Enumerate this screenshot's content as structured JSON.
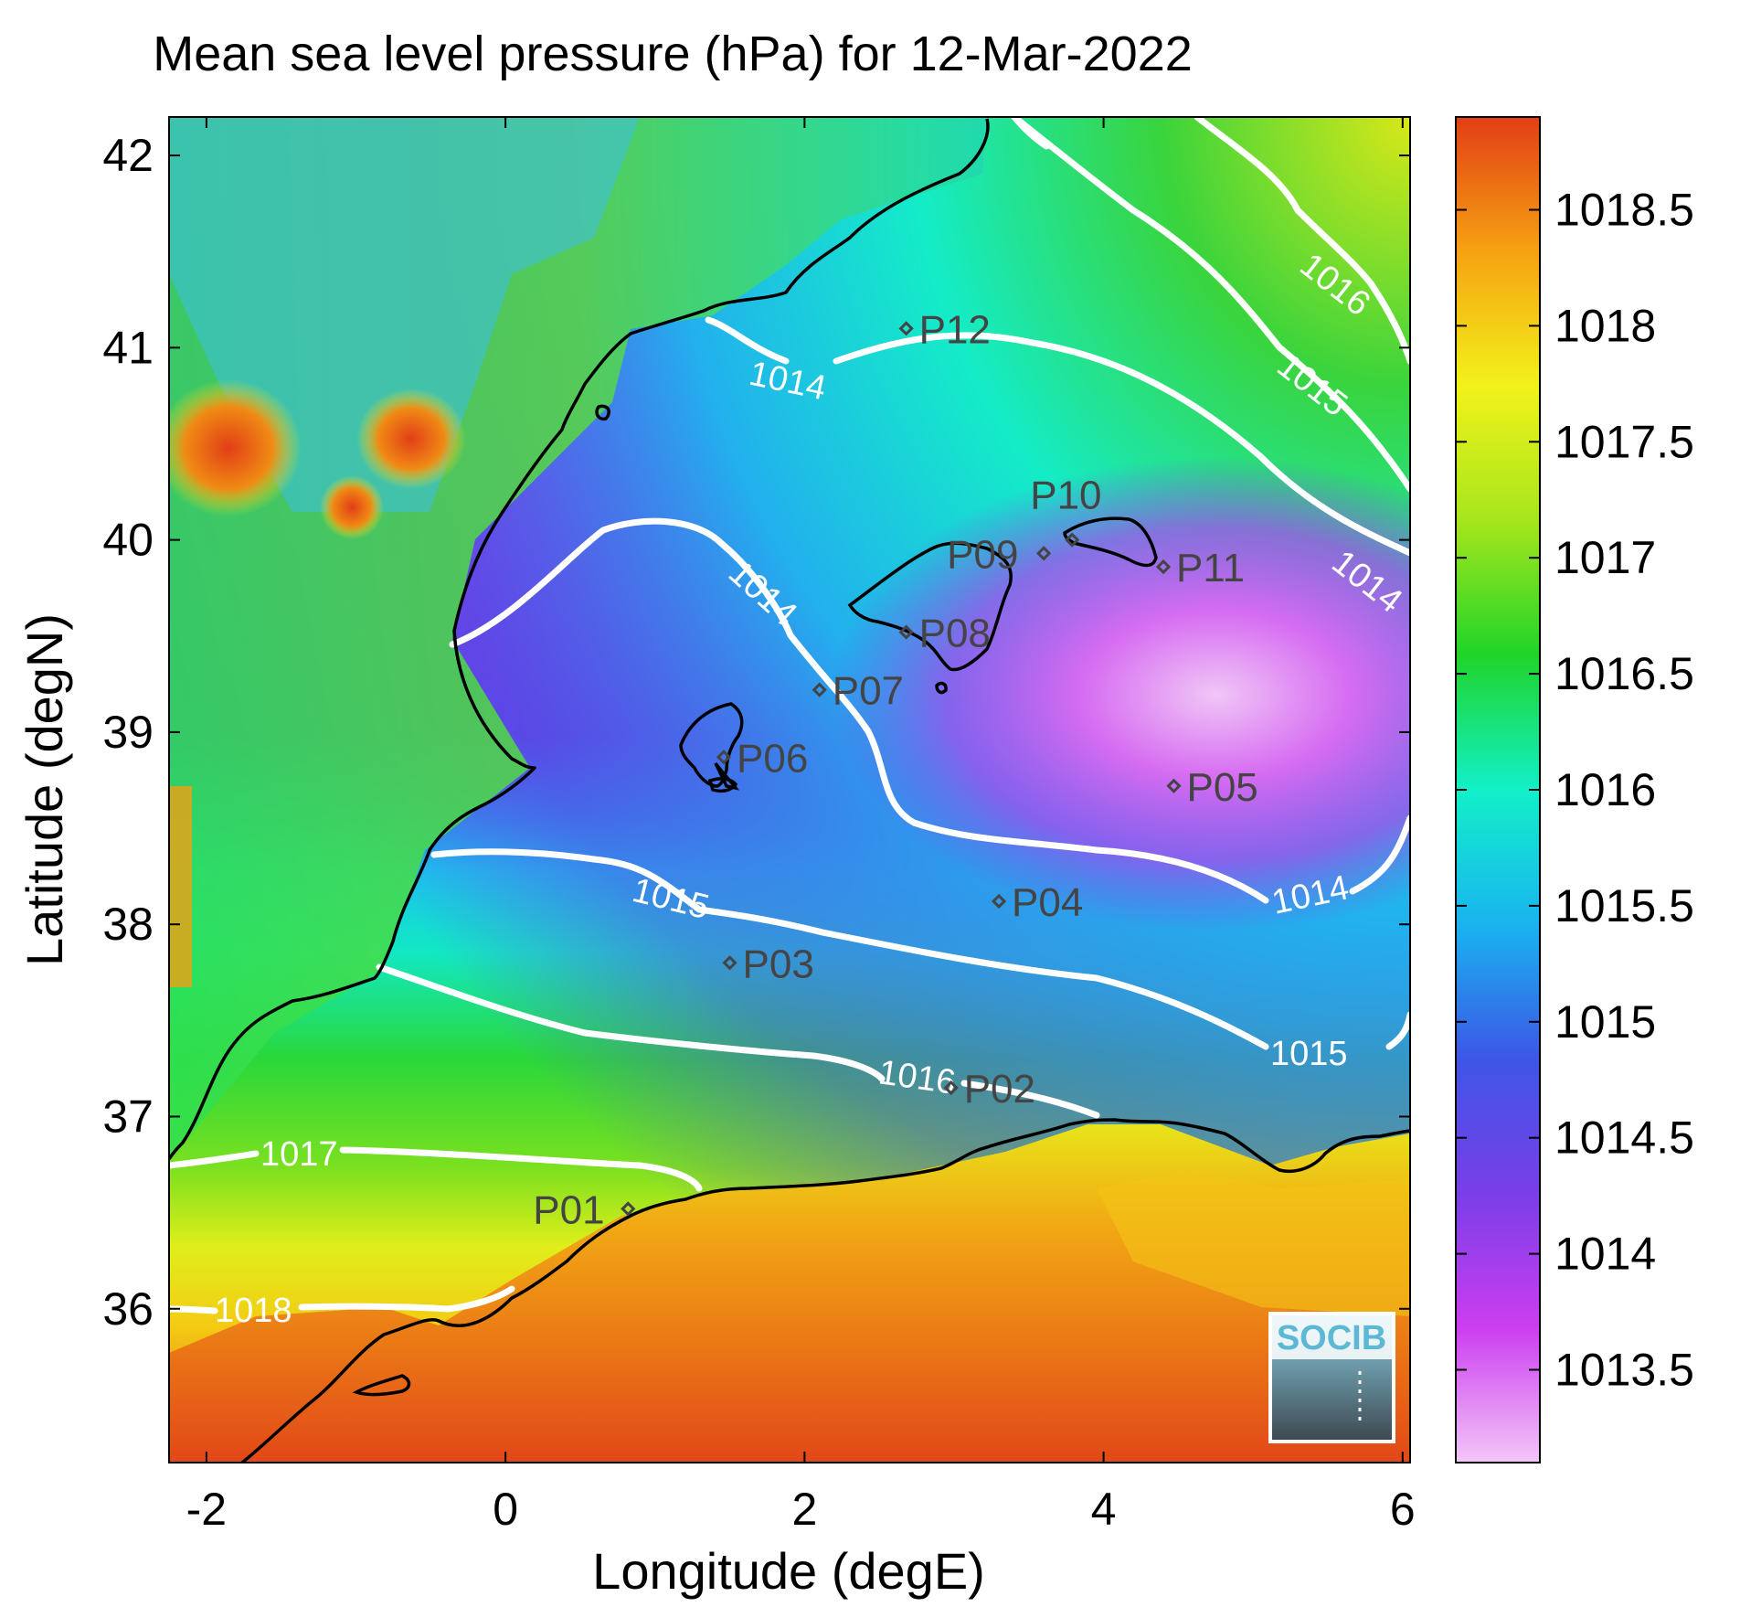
{
  "title": "Mean sea level pressure (hPa) for 12-Mar-2022",
  "xaxis": {
    "label": "Longitude (degE)",
    "range": [
      -2.25,
      6.05
    ],
    "ticks": [
      "-2",
      "0",
      "2",
      "4",
      "6"
    ],
    "tick_values": [
      -2,
      0,
      2,
      4,
      6
    ]
  },
  "yaxis": {
    "label": "Latitude (degN)",
    "range": [
      35.2,
      42.2
    ],
    "ticks": [
      "36",
      "37",
      "38",
      "39",
      "40",
      "41",
      "42"
    ],
    "tick_values": [
      36,
      37,
      38,
      39,
      40,
      41,
      42
    ]
  },
  "colorbar": {
    "range": [
      1013.1,
      1018.9
    ],
    "ticks": [
      "1013.5",
      "1014",
      "1014.5",
      "1015",
      "1015.5",
      "1016",
      "1016.5",
      "1017",
      "1017.5",
      "1018",
      "1018.5"
    ],
    "tick_values": [
      1013.5,
      1014,
      1014.5,
      1015,
      1015.5,
      1016,
      1016.5,
      1017,
      1017.5,
      1018,
      1018.5
    ],
    "colormap": [
      "#f3c6f8",
      "#cc3ef0",
      "#7a3ee8",
      "#3d56e6",
      "#19b4f0",
      "#12f0c8",
      "#20d42a",
      "#a6e61c",
      "#f2f21a",
      "#f6a212",
      "#e23e16"
    ]
  },
  "contour_labels": [
    "1014",
    "1014",
    "1014",
    "1014",
    "1015",
    "1015",
    "1015",
    "1016",
    "1016",
    "1017",
    "1018"
  ],
  "stations": [
    {
      "name": "P01",
      "lon": 0.82,
      "lat": 36.52
    },
    {
      "name": "P02",
      "lon": 2.98,
      "lat": 37.15
    },
    {
      "name": "P03",
      "lon": 1.5,
      "lat": 37.8
    },
    {
      "name": "P04",
      "lon": 3.3,
      "lat": 38.12
    },
    {
      "name": "P05",
      "lon": 4.47,
      "lat": 38.72
    },
    {
      "name": "P06",
      "lon": 1.46,
      "lat": 38.87
    },
    {
      "name": "P07",
      "lon": 2.1,
      "lat": 39.22
    },
    {
      "name": "P08",
      "lon": 2.68,
      "lat": 39.52
    },
    {
      "name": "P09",
      "lon": 3.6,
      "lat": 39.93
    },
    {
      "name": "P10",
      "lon": 3.79,
      "lat": 40.0
    },
    {
      "name": "P11",
      "lon": 4.4,
      "lat": 39.86
    },
    {
      "name": "P12",
      "lon": 2.68,
      "lat": 41.1
    }
  ],
  "logo": {
    "text": "SOCIB",
    "color": "#5cb8d4"
  }
}
